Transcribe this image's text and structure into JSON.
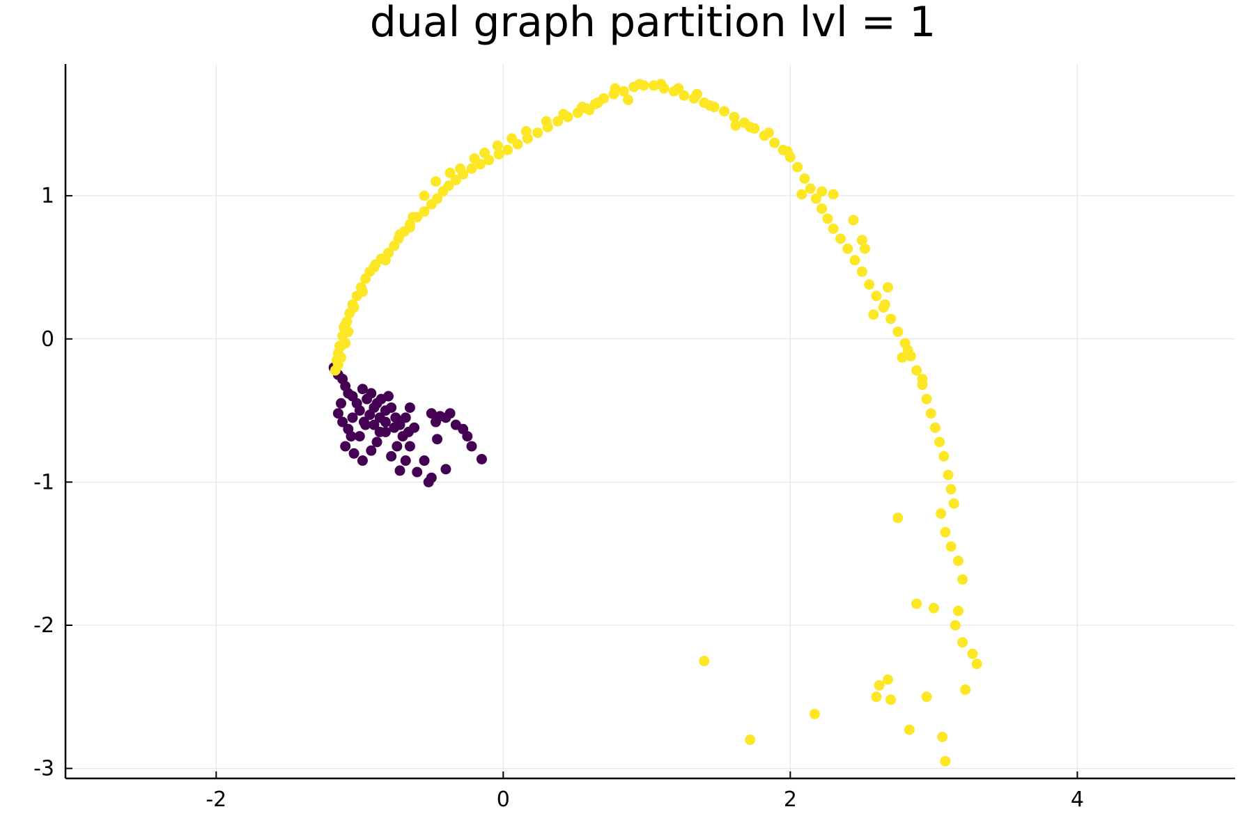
{
  "chart_data": {
    "type": "scatter",
    "title": "dual graph partition lvl = 1",
    "xlabel": "",
    "ylabel": "",
    "xlim": [
      -3.05,
      5.1
    ],
    "ylim": [
      -3.07,
      1.92
    ],
    "xticks": [
      -2,
      0,
      2,
      4
    ],
    "yticks": [
      1,
      0,
      -1,
      -2,
      -3
    ],
    "xtick_labels": [
      "-2",
      "0",
      "2",
      "4"
    ],
    "ytick_labels": [
      "1",
      "0",
      "-1",
      "-2",
      "-3"
    ],
    "grid": true,
    "legend": "none",
    "colors": {
      "part_0": "#440154",
      "part_1": "#fde725",
      "grid": "#e6e6e6",
      "axis": "#000000"
    },
    "series": [
      {
        "color_key": "part_0",
        "points": [
          [
            -1.18,
            -0.2
          ],
          [
            -1.15,
            -0.25
          ],
          [
            -1.12,
            -0.28
          ],
          [
            -1.1,
            -0.33
          ],
          [
            -1.08,
            -0.38
          ],
          [
            -1.13,
            -0.45
          ],
          [
            -1.05,
            -0.4
          ],
          [
            -1.02,
            -0.45
          ],
          [
            -0.98,
            -0.35
          ],
          [
            -0.95,
            -0.42
          ],
          [
            -0.92,
            -0.38
          ],
          [
            -0.88,
            -0.45
          ],
          [
            -1.15,
            -0.52
          ],
          [
            -1.12,
            -0.58
          ],
          [
            -1.08,
            -0.63
          ],
          [
            -1.05,
            -0.55
          ],
          [
            -1.0,
            -0.5
          ],
          [
            -0.97,
            -0.58
          ],
          [
            -0.93,
            -0.53
          ],
          [
            -0.9,
            -0.6
          ],
          [
            -0.86,
            -0.55
          ],
          [
            -0.82,
            -0.5
          ],
          [
            -0.78,
            -0.48
          ],
          [
            -0.75,
            -0.55
          ],
          [
            -0.72,
            -0.6
          ],
          [
            -0.68,
            -0.55
          ],
          [
            -0.65,
            -0.48
          ],
          [
            -0.62,
            -0.62
          ],
          [
            -0.85,
            -0.42
          ],
          [
            -0.8,
            -0.4
          ],
          [
            -1.1,
            -0.75
          ],
          [
            -1.04,
            -0.8
          ],
          [
            -0.98,
            -0.85
          ],
          [
            -0.92,
            -0.78
          ],
          [
            -0.88,
            -0.72
          ],
          [
            -0.82,
            -0.65
          ],
          [
            -0.78,
            -0.82
          ],
          [
            -0.74,
            -0.75
          ],
          [
            -0.7,
            -0.68
          ],
          [
            -0.68,
            -0.85
          ],
          [
            -0.65,
            -0.75
          ],
          [
            -0.72,
            -0.92
          ],
          [
            -0.6,
            -0.93
          ],
          [
            -0.55,
            -0.85
          ],
          [
            -0.5,
            -0.52
          ],
          [
            -0.47,
            -0.58
          ],
          [
            -0.44,
            -0.54
          ],
          [
            -0.4,
            -0.55
          ],
          [
            -0.37,
            -0.52
          ],
          [
            -0.33,
            -0.6
          ],
          [
            -0.28,
            -0.63
          ],
          [
            -0.25,
            -0.68
          ],
          [
            -0.22,
            -0.75
          ],
          [
            -0.15,
            -0.84
          ],
          [
            -0.46,
            -0.7
          ],
          [
            -0.5,
            -0.97
          ],
          [
            -0.52,
            -1.0
          ],
          [
            -0.4,
            -0.91
          ],
          [
            -0.96,
            -0.6
          ],
          [
            -1.0,
            -0.68
          ],
          [
            -0.86,
            -0.65
          ],
          [
            -0.76,
            -0.62
          ],
          [
            -0.66,
            -0.65
          ],
          [
            -0.9,
            -0.48
          ],
          [
            -1.06,
            -0.68
          ],
          [
            -0.82,
            -0.58
          ]
        ]
      },
      {
        "color_key": "part_1",
        "points": [
          [
            -1.17,
            -0.22
          ],
          [
            -1.16,
            -0.15
          ],
          [
            -1.15,
            -0.1
          ],
          [
            -1.14,
            -0.05
          ],
          [
            -1.12,
            0.02
          ],
          [
            -1.11,
            0.08
          ],
          [
            -1.09,
            0.12
          ],
          [
            -1.07,
            0.18
          ],
          [
            -1.05,
            0.24
          ],
          [
            -1.02,
            0.3
          ],
          [
            -0.99,
            0.36
          ],
          [
            -0.96,
            0.42
          ],
          [
            -0.93,
            0.47
          ],
          [
            -0.89,
            0.52
          ],
          [
            -0.85,
            0.56
          ],
          [
            -0.8,
            0.6
          ],
          [
            -0.76,
            0.65
          ],
          [
            -0.73,
            0.7
          ],
          [
            -0.69,
            0.75
          ],
          [
            -0.65,
            0.8
          ],
          [
            -0.6,
            0.85
          ],
          [
            -0.55,
            0.89
          ],
          [
            -0.5,
            0.94
          ],
          [
            -0.46,
            0.98
          ],
          [
            -0.42,
            1.03
          ],
          [
            -0.38,
            1.07
          ],
          [
            -0.33,
            1.11
          ],
          [
            -0.28,
            1.15
          ],
          [
            -0.22,
            1.19
          ],
          [
            -0.16,
            1.22
          ],
          [
            -0.1,
            1.25
          ],
          [
            -0.03,
            1.29
          ],
          [
            0.03,
            1.32
          ],
          [
            0.1,
            1.36
          ],
          [
            0.17,
            1.4
          ],
          [
            0.24,
            1.44
          ],
          [
            0.31,
            1.48
          ],
          [
            0.38,
            1.52
          ],
          [
            0.45,
            1.55
          ],
          [
            0.52,
            1.58
          ],
          [
            0.58,
            1.61
          ],
          [
            0.64,
            1.64
          ],
          [
            0.7,
            1.68
          ],
          [
            0.77,
            1.71
          ],
          [
            0.84,
            1.73
          ],
          [
            0.91,
            1.76
          ],
          [
            0.98,
            1.77
          ],
          [
            1.05,
            1.77
          ],
          [
            1.12,
            1.75
          ],
          [
            1.19,
            1.73
          ],
          [
            1.26,
            1.7
          ],
          [
            1.33,
            1.68
          ],
          [
            1.4,
            1.65
          ],
          [
            1.47,
            1.62
          ],
          [
            1.54,
            1.59
          ],
          [
            1.61,
            1.55
          ],
          [
            1.68,
            1.51
          ],
          [
            1.75,
            1.47
          ],
          [
            1.82,
            1.42
          ],
          [
            1.89,
            1.37
          ],
          [
            1.95,
            1.32
          ],
          [
            2.0,
            1.27
          ],
          [
            2.05,
            1.2
          ],
          [
            2.1,
            1.12
          ],
          [
            2.14,
            1.05
          ],
          [
            2.18,
            0.98
          ],
          [
            2.22,
            0.91
          ],
          [
            2.26,
            0.84
          ],
          [
            2.3,
            0.77
          ],
          [
            2.35,
            0.7
          ],
          [
            2.4,
            0.63
          ],
          [
            2.45,
            0.55
          ],
          [
            2.5,
            0.47
          ],
          [
            2.55,
            0.38
          ],
          [
            2.6,
            0.3
          ],
          [
            2.65,
            0.22
          ],
          [
            2.7,
            0.14
          ],
          [
            2.75,
            0.05
          ],
          [
            2.8,
            -0.03
          ],
          [
            2.84,
            -0.12
          ],
          [
            2.88,
            -0.22
          ],
          [
            2.92,
            -0.32
          ],
          [
            2.95,
            -0.42
          ],
          [
            2.98,
            -0.52
          ],
          [
            3.01,
            -0.62
          ],
          [
            3.04,
            -0.72
          ],
          [
            3.07,
            -0.82
          ],
          [
            3.1,
            -0.95
          ],
          [
            3.12,
            -1.05
          ],
          [
            3.14,
            -1.15
          ],
          [
            3.05,
            -1.22
          ],
          [
            3.08,
            -1.35
          ],
          [
            3.12,
            -1.45
          ],
          [
            3.17,
            -1.55
          ],
          [
            3.2,
            -1.68
          ],
          [
            3.17,
            -1.9
          ],
          [
            3.15,
            -2.0
          ],
          [
            3.2,
            -2.12
          ],
          [
            3.27,
            -2.2
          ],
          [
            3.3,
            -2.27
          ],
          [
            3.22,
            -2.45
          ],
          [
            2.62,
            -2.42
          ],
          [
            2.6,
            -2.5
          ],
          [
            2.7,
            -2.52
          ],
          [
            2.68,
            -2.38
          ],
          [
            2.95,
            -2.5
          ],
          [
            2.83,
            -2.73
          ],
          [
            3.06,
            -2.78
          ],
          [
            3.08,
            -2.95
          ],
          [
            2.17,
            -2.62
          ],
          [
            1.72,
            -2.8
          ],
          [
            1.4,
            -2.25
          ],
          [
            2.75,
            -1.25
          ],
          [
            2.88,
            -1.85
          ],
          [
            3.0,
            -1.88
          ],
          [
            2.92,
            -0.28
          ],
          [
            2.82,
            -0.08
          ],
          [
            2.78,
            -0.13
          ],
          [
            2.68,
            0.36
          ],
          [
            2.58,
            0.17
          ],
          [
            2.66,
            0.24
          ],
          [
            2.5,
            0.69
          ],
          [
            2.52,
            0.63
          ],
          [
            2.44,
            0.83
          ],
          [
            2.3,
            1.01
          ],
          [
            2.22,
            1.03
          ],
          [
            2.08,
            1.01
          ],
          [
            1.98,
            1.31
          ],
          [
            1.85,
            1.44
          ],
          [
            1.72,
            1.48
          ],
          [
            1.62,
            1.49
          ],
          [
            1.44,
            1.63
          ],
          [
            1.35,
            1.71
          ],
          [
            1.22,
            1.75
          ],
          [
            1.1,
            1.78
          ],
          [
            0.95,
            1.78
          ],
          [
            0.78,
            1.75
          ],
          [
            0.66,
            1.65
          ],
          [
            0.55,
            1.62
          ],
          [
            0.42,
            1.57
          ],
          [
            0.3,
            1.52
          ],
          [
            0.16,
            1.45
          ],
          [
            0.06,
            1.4
          ],
          [
            -0.04,
            1.35
          ],
          [
            -0.13,
            1.3
          ],
          [
            -0.2,
            1.26
          ],
          [
            -0.3,
            1.19
          ],
          [
            -0.37,
            1.16
          ],
          [
            -0.47,
            1.1
          ],
          [
            -0.55,
            1.0
          ],
          [
            -0.63,
            0.85
          ],
          [
            -0.72,
            0.73
          ],
          [
            -0.82,
            0.55
          ],
          [
            -0.9,
            0.5
          ],
          [
            -0.98,
            0.33
          ],
          [
            -1.04,
            0.22
          ],
          [
            -1.1,
            0.1
          ],
          [
            -1.13,
            -0.05
          ],
          [
            -1.15,
            -0.18
          ],
          [
            -1.13,
            -0.13
          ],
          [
            -1.1,
            -0.03
          ],
          [
            -1.08,
            0.05
          ],
          [
            0.87,
            1.67
          ],
          [
            0.6,
            1.6
          ],
          [
            -0.65,
            0.78
          ]
        ]
      }
    ]
  }
}
